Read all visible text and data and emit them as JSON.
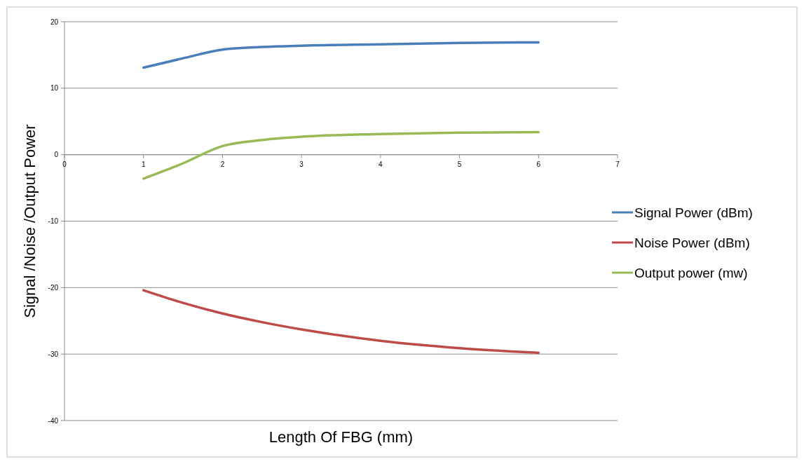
{
  "chart_data": {
    "type": "line",
    "xlabel": "Length Of FBG (mm)",
    "ylabel": "Signal /Noise /Output Power",
    "x": [
      1,
      1.5,
      2,
      2.5,
      3,
      4,
      5,
      6
    ],
    "series": [
      {
        "name": "Signal Power (dBm)",
        "color": "#4a7ebb",
        "values": [
          13.1,
          14.5,
          15.8,
          16.2,
          16.4,
          16.6,
          16.8,
          16.9
        ]
      },
      {
        "name": "Noise Power (dBm)",
        "color": "#be4b48",
        "values": [
          -20.4,
          -22.3,
          -23.9,
          -25.2,
          -26.3,
          -28.0,
          -29.1,
          -29.8
        ]
      },
      {
        "name": "Output power (mw)",
        "color": "#98b954",
        "values": [
          -3.6,
          -1.3,
          1.3,
          2.2,
          2.7,
          3.1,
          3.3,
          3.4
        ]
      }
    ],
    "xlim": [
      0,
      7
    ],
    "xticks": [
      0,
      1,
      2,
      3,
      4,
      5,
      6,
      7
    ],
    "ylim": [
      -40,
      20
    ],
    "yticks": [
      -40,
      -30,
      -20,
      -10,
      0,
      10,
      20
    ],
    "grid": "y",
    "legend": "right",
    "marker": "none",
    "line_style": "solid"
  }
}
